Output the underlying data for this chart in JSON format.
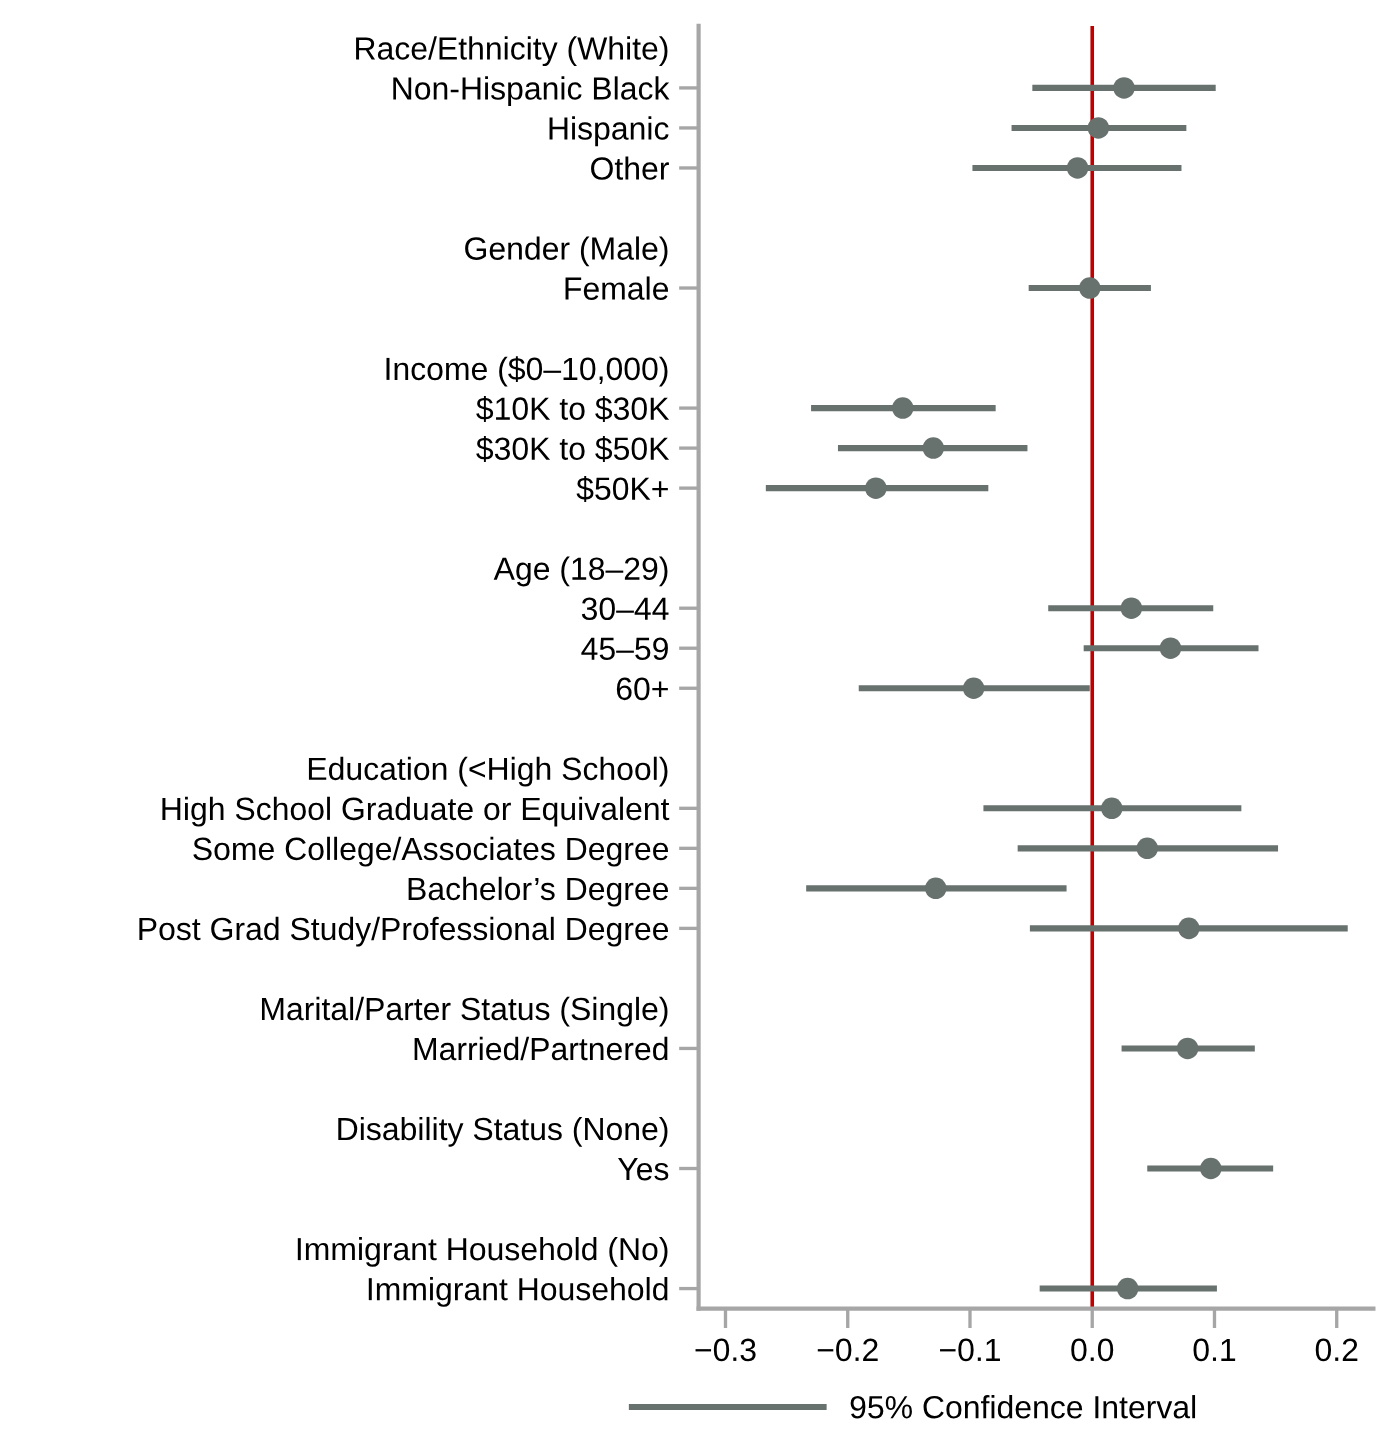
{
  "chart_data": {
    "type": "scatter",
    "orientation": "horizontal",
    "categories": [
      "Race/Ethnicity (White)",
      "Non-Hispanic Black",
      "Hispanic",
      "Other",
      null,
      "Gender (Male)",
      "Female",
      null,
      "Income ($0–10,000)",
      "$10K to $30K",
      "$30K to $50K",
      "$50K+",
      null,
      "Age (18–29)",
      "30–44",
      "45–59",
      "60+",
      null,
      "Education (<High School)",
      "High School Graduate or Equivalent",
      "Some College/Associates Degree",
      "Bachelor’s Degree",
      "Post Grad Study/Professional Degree",
      null,
      "Marital/Parter Status (Single)",
      "Married/Partnered",
      null,
      "Disability Status (None)",
      "Yes",
      null,
      "Immigrant Household (No)",
      "Immigrant Household"
    ],
    "series": [
      {
        "name": "95% Confidence Interval",
        "color": "#67716e",
        "values": [
          null,
          0.026,
          0.005,
          -0.012,
          null,
          null,
          -0.002,
          null,
          null,
          -0.155,
          -0.13,
          -0.177,
          null,
          null,
          0.032,
          0.064,
          -0.097,
          null,
          null,
          0.016,
          0.045,
          -0.128,
          0.079,
          null,
          null,
          0.078,
          null,
          null,
          0.097,
          null,
          null,
          0.029
        ],
        "errors": [
          null,
          [
            -0.049,
            0.101
          ],
          [
            -0.066,
            0.077
          ],
          [
            -0.098,
            0.073
          ],
          null,
          null,
          [
            -0.052,
            0.048
          ],
          null,
          null,
          [
            -0.23,
            -0.079
          ],
          [
            -0.208,
            -0.053
          ],
          [
            -0.267,
            -0.085
          ],
          null,
          null,
          [
            -0.036,
            0.099
          ],
          [
            -0.007,
            0.136
          ],
          [
            -0.191,
            -0.002
          ],
          null,
          null,
          [
            -0.089,
            0.122
          ],
          [
            -0.061,
            0.152
          ],
          [
            -0.234,
            -0.021
          ],
          [
            -0.051,
            0.209
          ],
          null,
          null,
          [
            0.024,
            0.133
          ],
          null,
          null,
          [
            0.045,
            0.148
          ],
          null,
          null,
          [
            -0.043,
            0.102
          ]
        ]
      }
    ],
    "xlim": [
      -0.322,
      0.23
    ],
    "xticks": [
      {
        "value": -0.3,
        "label": "−0.3"
      },
      {
        "value": -0.2,
        "label": "−0.2"
      },
      {
        "value": -0.1,
        "label": "−0.1"
      },
      {
        "value": 0,
        "label": "0.0"
      },
      {
        "value": 0.1,
        "label": "0.1"
      },
      {
        "value": 0.2,
        "label": "0.2"
      }
    ],
    "ref_lines": [
      {
        "axis": "x",
        "value": 0,
        "color": "#c00000"
      }
    ],
    "grid": false,
    "legend": "bottom",
    "marker": "circle"
  }
}
